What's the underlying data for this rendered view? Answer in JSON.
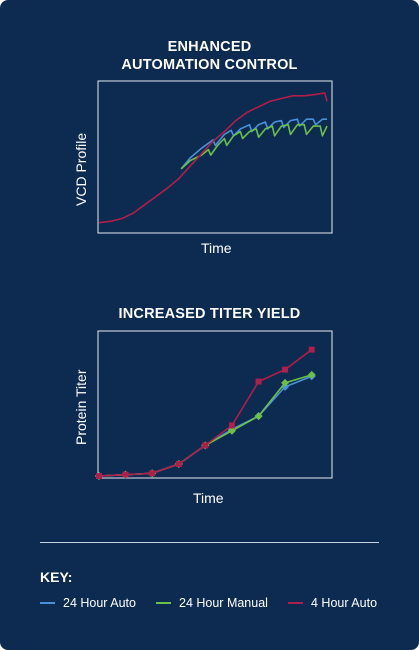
{
  "chart_data": [
    {
      "type": "line",
      "title": "ENHANCED\nAUTOMATION CONTROL",
      "xlabel": "Time",
      "ylabel": "VCD Profile",
      "xlim": [
        0,
        100
      ],
      "ylim": [
        0,
        100
      ],
      "ticks": false,
      "grid": false,
      "series": [
        {
          "name": "24 Hour Auto",
          "color": "#4a90d9",
          "x": [
            36,
            40,
            45,
            50,
            51,
            55,
            58,
            59,
            62,
            66,
            67,
            70,
            73,
            74,
            77,
            80,
            81,
            84,
            87,
            88,
            91,
            94,
            95,
            98,
            100
          ],
          "y": [
            45,
            53,
            60,
            66,
            62,
            70,
            73,
            69,
            74,
            77,
            72,
            77,
            79,
            74,
            79,
            80,
            75,
            80,
            81,
            76,
            81,
            81,
            77,
            81,
            81
          ]
        },
        {
          "name": "24 Hour Manual",
          "color": "#6cc04a",
          "x": [
            36,
            40,
            45,
            48,
            49,
            52,
            55,
            56,
            59,
            62,
            63,
            66,
            69,
            70,
            73,
            76,
            77,
            80,
            83,
            84,
            87,
            90,
            91,
            94,
            97,
            98,
            100
          ],
          "y": [
            45,
            51,
            55,
            59,
            55,
            62,
            67,
            62,
            69,
            72,
            67,
            72,
            74,
            68,
            74,
            76,
            69,
            76,
            77,
            70,
            77,
            77,
            70,
            76,
            76,
            69,
            76
          ]
        },
        {
          "name": "4 Hour Auto",
          "color": "#b01e4a",
          "x": [
            0,
            5,
            10,
            15,
            20,
            25,
            30,
            35,
            40,
            45,
            50,
            55,
            60,
            65,
            70,
            75,
            80,
            85,
            90,
            95,
            99,
            100
          ],
          "y": [
            6,
            7,
            9,
            13,
            19,
            25,
            31,
            38,
            47,
            56,
            65,
            72,
            80,
            86,
            90,
            94,
            96,
            98,
            98,
            99,
            100,
            94
          ]
        }
      ]
    },
    {
      "type": "line",
      "title": "INCREASED TITER YIELD",
      "xlabel": "Time",
      "ylabel": "Protein Titer",
      "xlim": [
        0,
        100
      ],
      "ylim": [
        0,
        100
      ],
      "ticks": false,
      "grid": false,
      "series": [
        {
          "name": "24 Hour Auto",
          "color": "#4a90d9",
          "marker": "diamond",
          "x": [
            0,
            11.6,
            23.3,
            35,
            46.6,
            58.3,
            70,
            81.6,
            93.3
          ],
          "y": [
            0,
            1,
            2,
            9,
            23,
            35,
            45,
            67,
            75
          ]
        },
        {
          "name": "24 Hour Manual",
          "color": "#6cc04a",
          "marker": "diamond",
          "x": [
            0,
            11.6,
            23.3,
            35,
            46.6,
            58.3,
            70,
            81.6,
            93.3
          ],
          "y": [
            0,
            1,
            2,
            9,
            23,
            34,
            45,
            70,
            76
          ]
        },
        {
          "name": "4 Hour Auto",
          "color": "#b01e4a",
          "marker": "square",
          "x": [
            0,
            11.6,
            23.3,
            35,
            46.6,
            58.3,
            70,
            81.6,
            93.3
          ],
          "y": [
            0,
            1,
            2,
            9,
            23,
            38,
            71,
            80,
            95
          ]
        }
      ]
    }
  ],
  "key": {
    "title": "KEY:",
    "items": [
      {
        "label": "24 Hour Auto",
        "color": "#4a90d9"
      },
      {
        "label": "24 Hour Manual",
        "color": "#6cc04a"
      },
      {
        "label": "4 Hour Auto",
        "color": "#b01e4a"
      }
    ]
  }
}
